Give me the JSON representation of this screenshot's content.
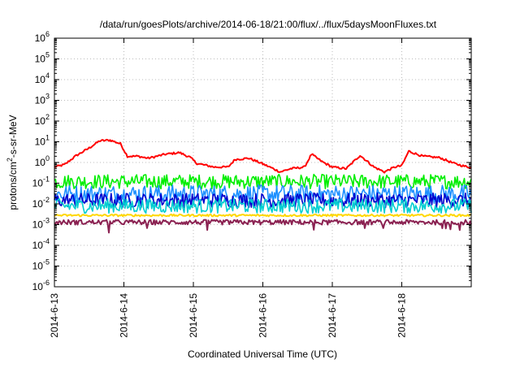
{
  "chart_data": {
    "type": "line",
    "title": "/data/run/goesPlots/archive/2014-06-18/21:00/flux/../flux/5daysMoonFluxes.txt",
    "xlabel": "Coordinated Universal Time (UTC)",
    "ylabel": {
      "base": "protons/cm",
      "superscript": "2",
      "suffix": "-s-sr-MeV"
    },
    "x_ticks": [
      "2014-6-13",
      "2014-6-14",
      "2014-6-15",
      "2014-6-16",
      "2014-6-17",
      "2014-6-18"
    ],
    "xlim_days": [
      0,
      6
    ],
    "y_scale": "log",
    "ylim_exponents": [
      -6,
      6
    ],
    "y_tick_exponents": [
      6,
      5,
      4,
      3,
      2,
      1,
      0,
      -1,
      -2,
      -3,
      -4,
      -5,
      -6
    ],
    "grid": true,
    "series": [
      {
        "color": "#ff0000",
        "noise": 0.05,
        "x": [
          0,
          0.15,
          0.3,
          0.5,
          0.65,
          0.8,
          0.95,
          1.05,
          1.2,
          1.35,
          1.6,
          1.8,
          1.95,
          2.05,
          2.3,
          2.5,
          2.6,
          2.8,
          2.95,
          3.1,
          3.25,
          3.4,
          3.6,
          3.7,
          3.85,
          4.0,
          4.2,
          4.4,
          4.6,
          4.75,
          4.9,
          5.0,
          5.1,
          5.3,
          5.55,
          5.75,
          5.95
        ],
        "y": [
          0.6,
          0.8,
          2,
          5,
          11,
          12,
          8,
          2,
          2,
          1.6,
          2.5,
          3,
          1.8,
          0.9,
          0.6,
          0.6,
          1.4,
          1.6,
          1.0,
          0.6,
          0.35,
          0.5,
          0.6,
          2.5,
          1.1,
          0.6,
          0.5,
          2.2,
          0.6,
          0.35,
          0.6,
          0.7,
          3.5,
          2,
          1.7,
          0.9,
          0.6
        ]
      },
      {
        "color": "#00ee00",
        "base": 0.12,
        "noise": 0.35,
        "x": [],
        "y": []
      },
      {
        "color": "#1e90ff",
        "base": 0.03,
        "noise": 0.45,
        "x": [],
        "y": []
      },
      {
        "color": "#0000cd",
        "base": 0.015,
        "noise": 0.35,
        "x": [],
        "y": []
      },
      {
        "color": "#00ced1",
        "base": 0.008,
        "noise": 0.35,
        "x": [],
        "y": []
      },
      {
        "color": "#ffd700",
        "base": 0.0028,
        "noise": 0.05,
        "x": [],
        "y": []
      },
      {
        "color": "#8b2252",
        "base": 0.0013,
        "noise": 0.12,
        "x": [],
        "y": []
      }
    ]
  }
}
